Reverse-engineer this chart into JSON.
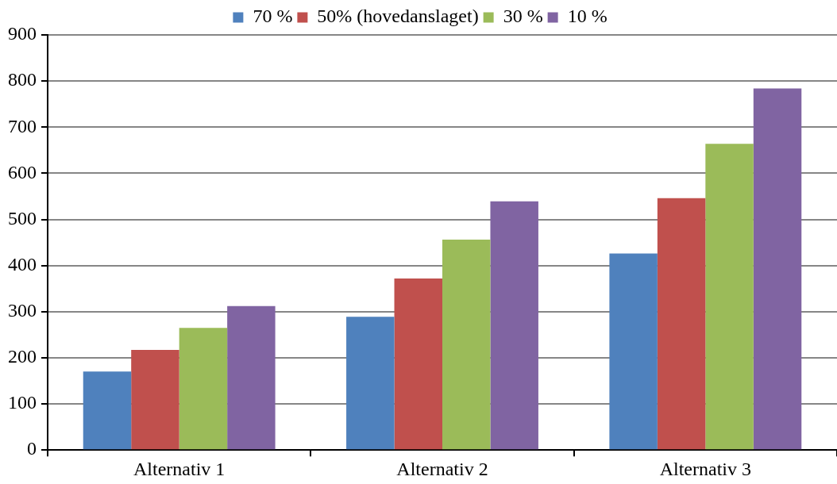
{
  "chart_data": {
    "type": "bar",
    "categories": [
      "Alternativ 1",
      "Alternativ 2",
      "Alternativ 3"
    ],
    "series": [
      {
        "name": "70 %",
        "color": "#4f81bd",
        "values": [
          170,
          289,
          426
        ]
      },
      {
        "name": "50% (hovedanslaget)",
        "color": "#c0504d",
        "values": [
          217,
          372,
          546
        ]
      },
      {
        "name": "30 %",
        "color": "#9bbb59",
        "values": [
          265,
          456,
          664
        ]
      },
      {
        "name": "10 %",
        "color": "#8064a2",
        "values": [
          312,
          539,
          784
        ]
      }
    ],
    "ylim": [
      0,
      900
    ],
    "yticks": [
      0,
      100,
      200,
      300,
      400,
      500,
      600,
      700,
      800,
      900
    ],
    "grid": "y",
    "legend": "top"
  }
}
